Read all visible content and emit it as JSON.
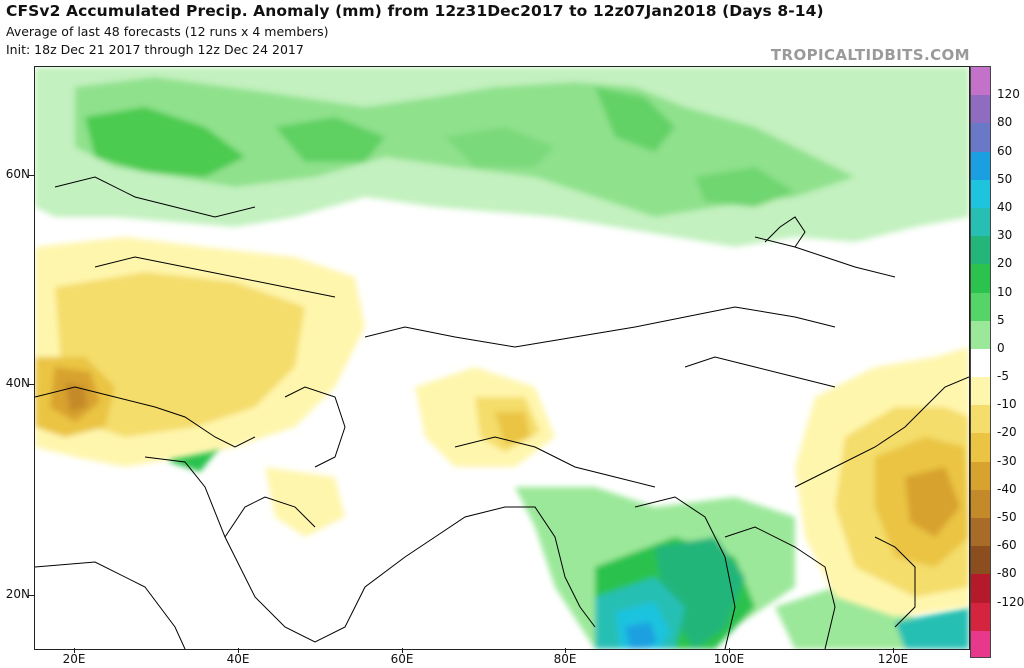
{
  "header": {
    "title": "CFSv2 Accumulated Precip. Anomaly (mm) from 12z31Dec2017 to 12z07Jan2018 (Days 8-14)",
    "subtitle": "Average of last 48 forecasts (12 runs x 4 members)",
    "init": "Init: 18z Dec 21 2017 through 12z Dec 24 2017",
    "brand": "TROPICALTIDBITS.COM"
  },
  "axes": {
    "latitude_labels": [
      "60N",
      "40N",
      "20N"
    ],
    "longitude_labels": [
      "20E",
      "40E",
      "60E",
      "80E",
      "100E",
      "120E"
    ]
  },
  "colorbar": {
    "labels": [
      "120",
      "80",
      "60",
      "50",
      "40",
      "30",
      "20",
      "10",
      "5",
      "0",
      "-5",
      "-10",
      "-20",
      "-30",
      "-40",
      "-50",
      "-60",
      "-80",
      "-120"
    ],
    "colors": [
      "#c472c9",
      "#8f6cc0",
      "#6a78c8",
      "#1aa0e0",
      "#1ec3de",
      "#27bfb4",
      "#23b57a",
      "#2cc24e",
      "#55d468",
      "#9be89a",
      "#ffffff",
      "#fff6ad",
      "#f4dd6a",
      "#eac442",
      "#d8a22e",
      "#c48a2a",
      "#a96b28",
      "#8c4e1f",
      "#b41a2a",
      "#d4243e",
      "#e8388c"
    ]
  }
}
